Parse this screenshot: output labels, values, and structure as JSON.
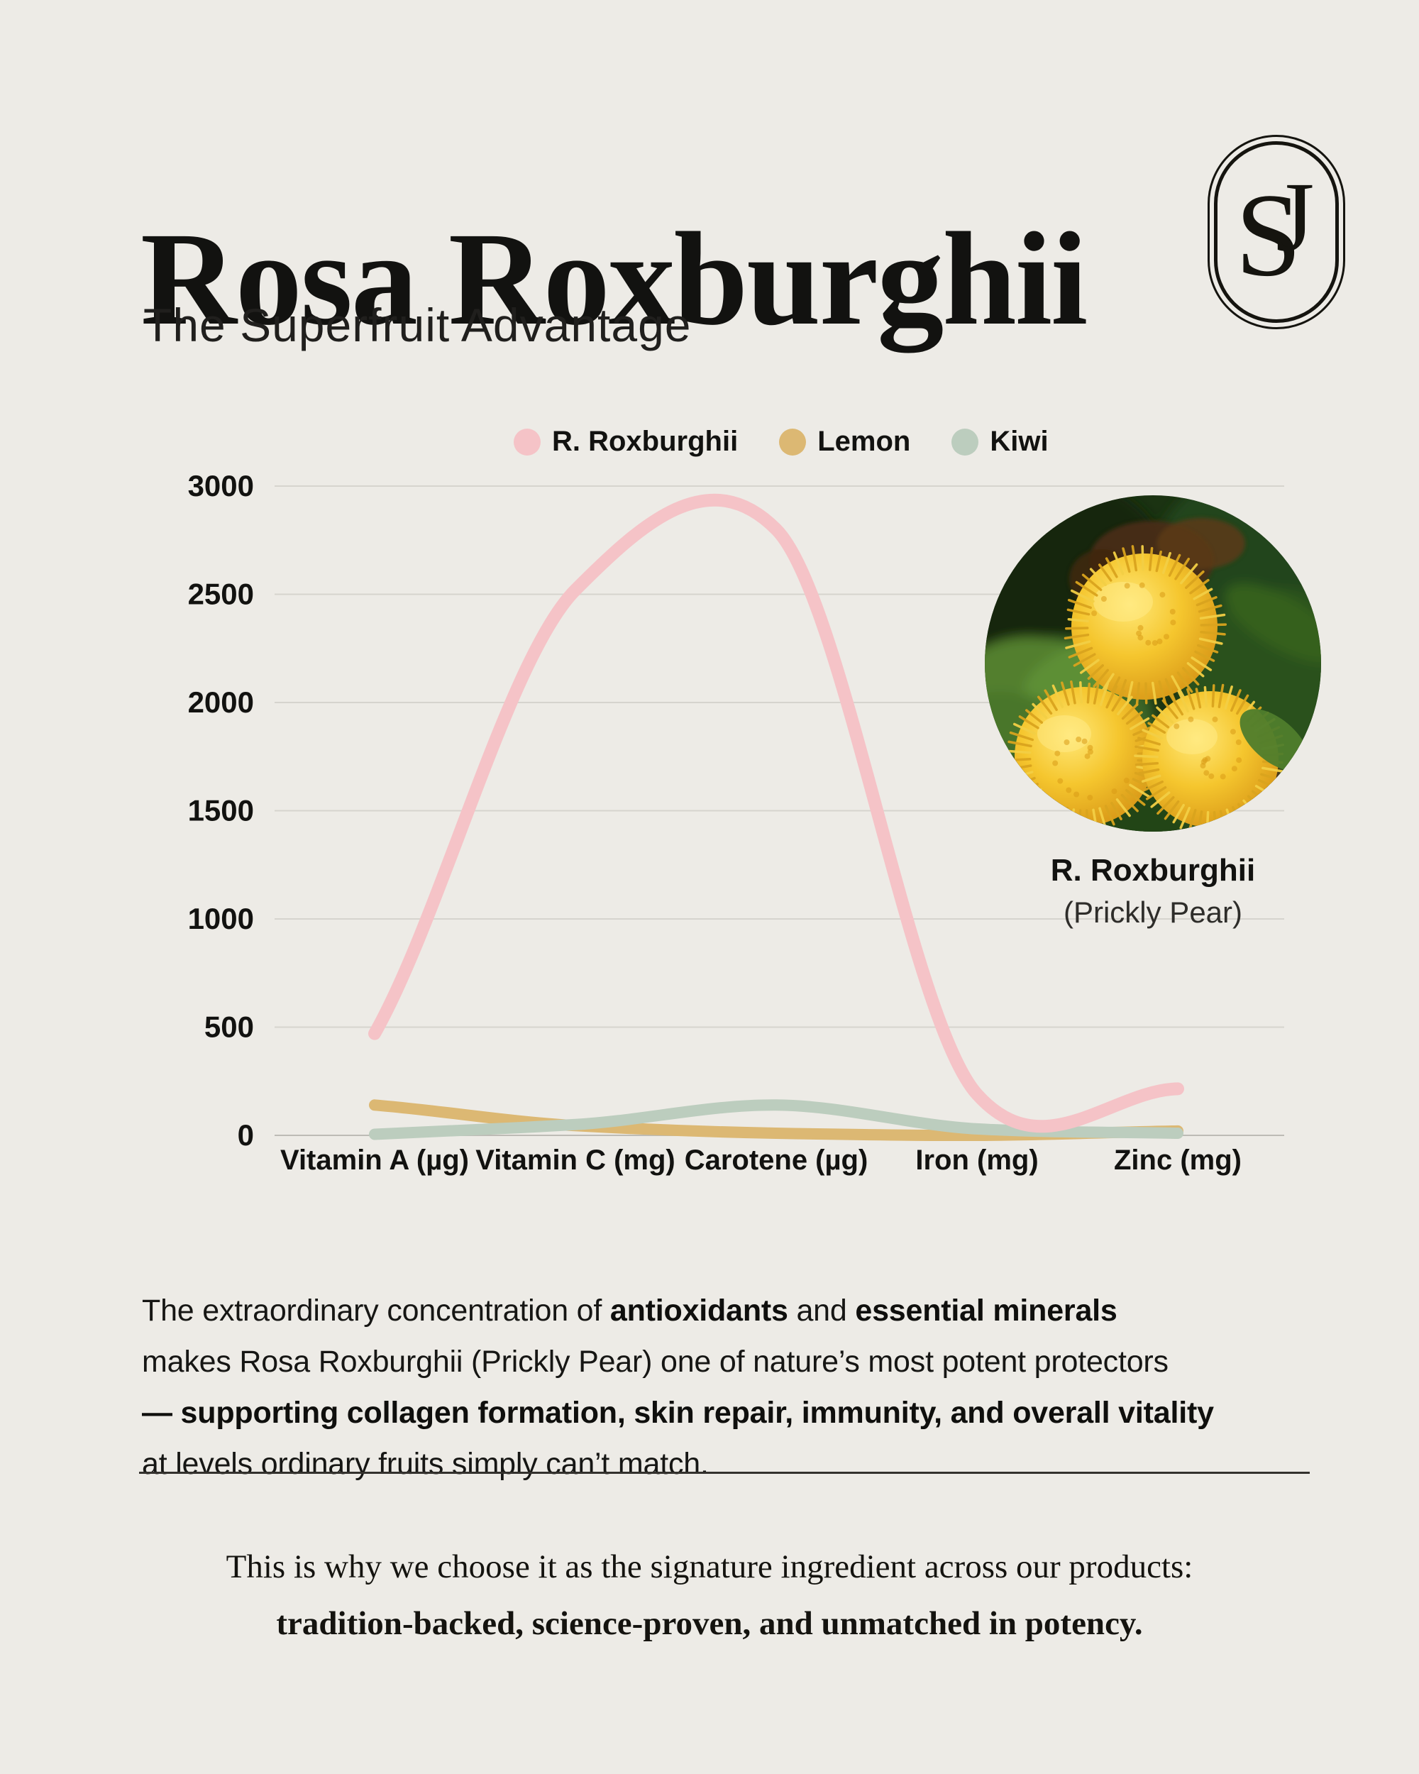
{
  "page": {
    "background": "#edebe6",
    "text_color": "#151513"
  },
  "header": {
    "title": "Rosa Roxburghii",
    "subtitle": "The Superfruit Advantage",
    "logo": {
      "letter_s": "S",
      "letter_j": "J"
    }
  },
  "chart": {
    "y_tick_labels": [
      "3000",
      "2500",
      "2000",
      "1500",
      "1000",
      "500",
      "0"
    ]
  },
  "chart_data": {
    "type": "line",
    "categories": [
      "Vitamin A (µg)",
      "Vitamin C (mg)",
      "Carotene (µg)",
      "Iron (mg)",
      "Zinc (mg)"
    ],
    "series": [
      {
        "name": "R. Roxburghii",
        "color": "#f5c3c7",
        "values": [
          470,
          2520,
          2800,
          190,
          215
        ]
      },
      {
        "name": "Lemon",
        "color": "#dcb873",
        "values": [
          140,
          45,
          10,
          0,
          20
        ]
      },
      {
        "name": "Kiwi",
        "color": "#bccdbe",
        "values": [
          5,
          50,
          140,
          30,
          10
        ]
      }
    ],
    "ylim": [
      0,
      3000
    ],
    "y_ticks": [
      0,
      500,
      1000,
      1500,
      2000,
      2500,
      3000
    ],
    "grid": "horizontal",
    "legend_position": "top",
    "line_style": "smooth"
  },
  "photo": {
    "caption_title": "R. Roxburghii",
    "caption_subtitle": "(Prickly Pear)",
    "subject": "three spiky golden-yellow prickly pear fruits on dark green foliage"
  },
  "paragraph": {
    "segments": [
      {
        "text": "The extraordinary concentration of ",
        "bold": false
      },
      {
        "text": "antioxidants",
        "bold": true
      },
      {
        "text": " and ",
        "bold": false
      },
      {
        "text": "essential minerals",
        "bold": true
      },
      {
        "text": "\nmakes Rosa Roxburghii (Prickly Pear) one of nature’s most potent protectors\n",
        "bold": false
      },
      {
        "text": "— supporting collagen formation, skin repair, immunity, and overall vitality",
        "bold": true
      },
      {
        "text": "\nat levels ordinary fruits simply can’t match.",
        "bold": false
      }
    ]
  },
  "footer": {
    "line1": "This is why we choose it as the signature ingredient across our products:",
    "line2": "tradition-backed, science-proven, and unmatched in potency."
  }
}
